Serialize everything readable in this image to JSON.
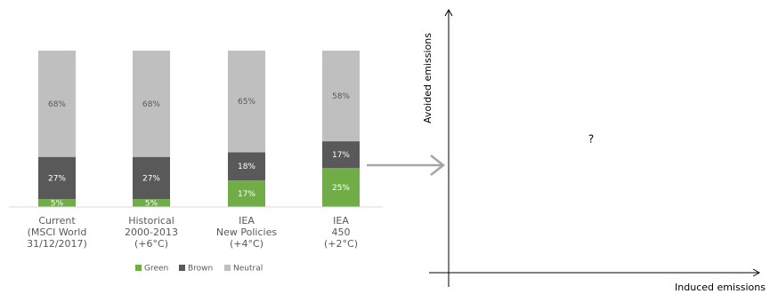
{
  "chart_data": [
    {
      "type": "bar",
      "stacked": true,
      "percent_stacked": true,
      "categories": [
        [
          "Current",
          "(MSCI World",
          "31/12/2017)"
        ],
        [
          "Historical",
          "2000-2013",
          "(+6°C)"
        ],
        [
          "IEA",
          "New Policies",
          "(+4°C)"
        ],
        [
          "IEA",
          "450",
          "(+2°C)"
        ]
      ],
      "series": [
        {
          "name": "Green",
          "values": [
            5,
            5,
            17,
            25
          ],
          "labels": [
            "5%",
            "5%",
            "17%",
            "25%"
          ]
        },
        {
          "name": "Brown",
          "values": [
            27,
            27,
            18,
            17
          ],
          "labels": [
            "27%",
            "27%",
            "18%",
            "17%"
          ]
        },
        {
          "name": "Neutral",
          "values": [
            68,
            68,
            65,
            58
          ],
          "labels": [
            "68%",
            "68%",
            "65%",
            "58%"
          ]
        }
      ],
      "ylim": [
        0,
        100
      ],
      "legend": "bottom",
      "grid": false,
      "colors": {
        "Green": "#70ad47",
        "Brown": "#595959",
        "Neutral": "#bfbfbf"
      }
    },
    {
      "type": "scatter",
      "xlabel": "Induced emissions",
      "ylabel": "Avoided emissions",
      "annotation": "?",
      "grid": false
    }
  ]
}
